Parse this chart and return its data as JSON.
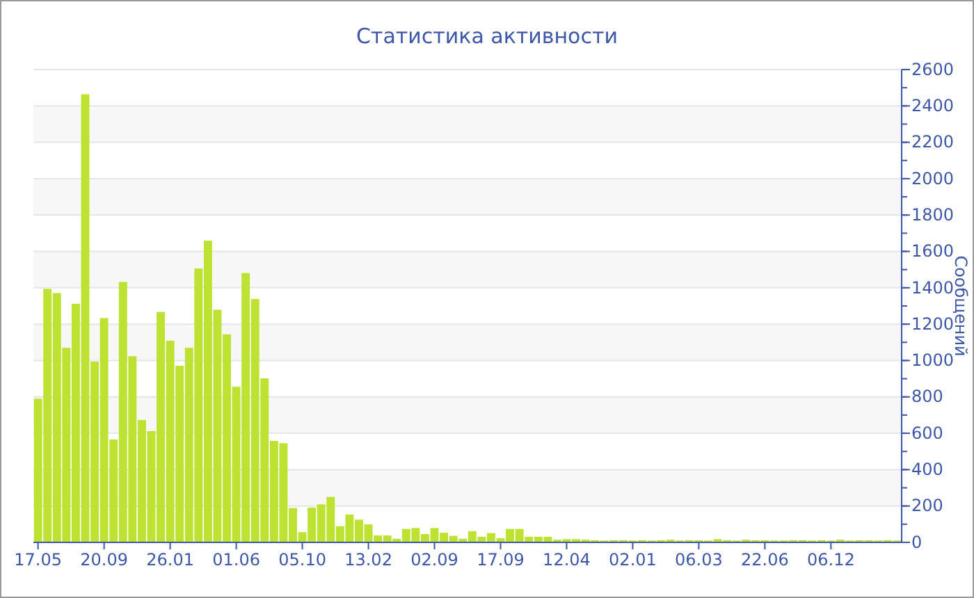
{
  "chart_data": {
    "type": "bar",
    "title": "Статистика активности",
    "ylabel": "Сообщений",
    "categories": [
      "17.05",
      null,
      null,
      null,
      null,
      null,
      null,
      "20.09",
      null,
      null,
      null,
      null,
      null,
      null,
      "26.01",
      null,
      null,
      null,
      null,
      null,
      null,
      "01.06",
      null,
      null,
      null,
      null,
      null,
      null,
      "05.10",
      null,
      null,
      null,
      null,
      null,
      null,
      "13.02",
      null,
      null,
      null,
      null,
      null,
      null,
      "02.09",
      null,
      null,
      null,
      null,
      null,
      null,
      "17.09",
      null,
      null,
      null,
      null,
      null,
      null,
      "12.04",
      null,
      null,
      null,
      null,
      null,
      null,
      "02.01",
      null,
      null,
      null,
      null,
      null,
      null,
      "06.03",
      null,
      null,
      null,
      null,
      null,
      null,
      "22.06",
      null,
      null,
      null,
      null,
      null,
      null,
      "06.12",
      null,
      null,
      null,
      null,
      null,
      null,
      null
    ],
    "values": [
      790,
      1394,
      1371,
      1070,
      1312,
      2464,
      994,
      1233,
      566,
      1432,
      1024,
      673,
      612,
      1267,
      1109,
      971,
      1070,
      1506,
      1659,
      1279,
      1144,
      856,
      1481,
      1338,
      902,
      558,
      545,
      189,
      56,
      191,
      209,
      250,
      89,
      153,
      125,
      99,
      38,
      38,
      20,
      74,
      79,
      46,
      79,
      53,
      36,
      20,
      61,
      31,
      51,
      23,
      74,
      74,
      31,
      31,
      31,
      15,
      18,
      18,
      15,
      12,
      10,
      12,
      12,
      10,
      12,
      10,
      12,
      15,
      10,
      12,
      12,
      10,
      18,
      12,
      10,
      15,
      12,
      12,
      10,
      10,
      12,
      12,
      10,
      12,
      10,
      15,
      10,
      12,
      12,
      10,
      12,
      10
    ],
    "color": "#bde232",
    "ylim": [
      0,
      2600
    ],
    "yticks": [
      0,
      200,
      400,
      600,
      800,
      1000,
      1200,
      1400,
      1600,
      1800,
      2000,
      2200,
      2400,
      2600
    ],
    "grid": true
  }
}
